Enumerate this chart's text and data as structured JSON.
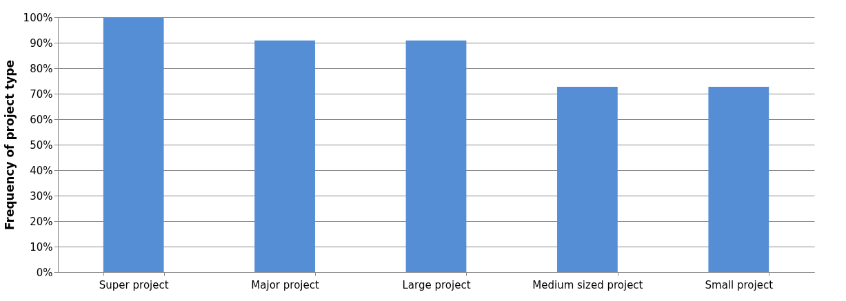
{
  "chart_data": {
    "type": "bar",
    "ylabel": "Frequency of project type",
    "categories": [
      "Super project",
      "Major project",
      "Large project",
      "Medium sized project",
      "Small project"
    ],
    "values": [
      100,
      90.9,
      90.9,
      72.7,
      72.7
    ],
    "color": "#558ed5",
    "ylim": [
      0,
      100
    ],
    "yticks": [
      {
        "value": 0,
        "label": "0%"
      },
      {
        "value": 10,
        "label": "10%"
      },
      {
        "value": 20,
        "label": "20%"
      },
      {
        "value": 30,
        "label": "30%"
      },
      {
        "value": 40,
        "label": "40%"
      },
      {
        "value": 50,
        "label": "50%"
      },
      {
        "value": 60,
        "label": "60%"
      },
      {
        "value": 70,
        "label": "70%"
      },
      {
        "value": 80,
        "label": "80%"
      },
      {
        "value": 90,
        "label": "90%"
      },
      {
        "value": 100,
        "label": "100%"
      }
    ],
    "grid": "y"
  }
}
